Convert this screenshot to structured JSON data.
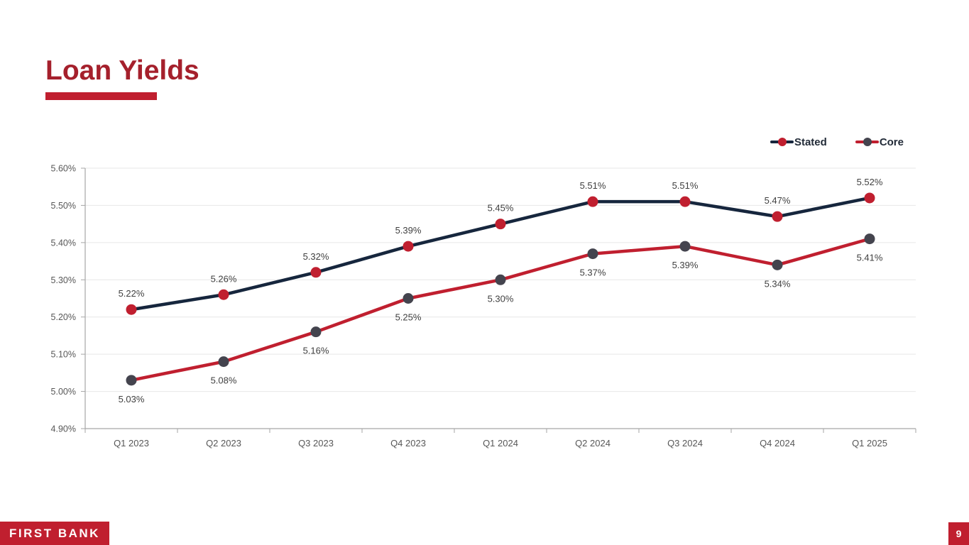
{
  "slide": {
    "title": "Loan Yields",
    "page_number": "9",
    "footer_logo_text": "FIRST BANK"
  },
  "colors": {
    "title_red": "#A5202C",
    "accent_red": "#C01F2F",
    "navy": "#16263D",
    "core_marker_gray": "#44444E",
    "axis_text_gray": "#575757",
    "data_label_gray": "#3F3F3F",
    "gridline_gray": "#E7E7E7",
    "axis_line_gray": "#A6A6A6",
    "legend_text": "#222B38"
  },
  "chart_data": {
    "type": "line",
    "title": "Loan Yields",
    "categories": [
      "Q1 2023",
      "Q2 2023",
      "Q3 2023",
      "Q4 2023",
      "Q1 2024",
      "Q2 2024",
      "Q3 2024",
      "Q4 2024",
      "Q1 2025"
    ],
    "series": [
      {
        "name": "Stated",
        "values": [
          5.22,
          5.26,
          5.32,
          5.39,
          5.45,
          5.51,
          5.51,
          5.47,
          5.52
        ],
        "labels": [
          "5.22%",
          "5.26%",
          "5.32%",
          "5.39%",
          "5.45%",
          "5.51%",
          "5.51%",
          "5.47%",
          "5.52%"
        ],
        "line_color": "#16263D",
        "marker_color": "#C01F2F",
        "label_position": "above"
      },
      {
        "name": "Core",
        "values": [
          5.03,
          5.08,
          5.16,
          5.25,
          5.3,
          5.37,
          5.39,
          5.34,
          5.41
        ],
        "labels": [
          "5.03%",
          "5.08%",
          "5.16%",
          "5.25%",
          "5.30%",
          "5.37%",
          "5.39%",
          "5.34%",
          "5.41%"
        ],
        "line_color": "#C01F2F",
        "marker_color": "#44444E",
        "label_position": "below"
      }
    ],
    "y_axis": {
      "min": 4.9,
      "max": 5.6,
      "tick_step": 0.1,
      "tick_labels": [
        "4.90%",
        "5.00%",
        "5.10%",
        "5.20%",
        "5.30%",
        "5.40%",
        "5.50%",
        "5.60%"
      ]
    },
    "grid": true,
    "legend_position": "top-right"
  }
}
